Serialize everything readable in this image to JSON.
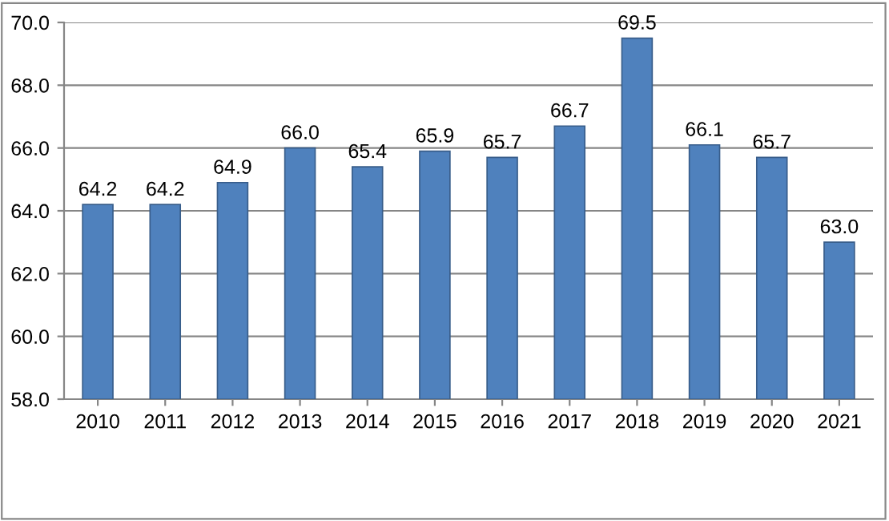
{
  "chart_data": {
    "type": "bar",
    "categories": [
      "2010",
      "2011",
      "2012",
      "2013",
      "2014",
      "2015",
      "2016",
      "2017",
      "2018",
      "2019",
      "2020",
      "2021"
    ],
    "values": [
      64.2,
      64.2,
      64.9,
      66.0,
      65.4,
      65.9,
      65.7,
      66.7,
      69.5,
      66.1,
      65.7,
      63.0
    ],
    "color": "#4f81bd",
    "ylim": [
      58,
      70
    ],
    "yticks": [
      {
        "value": 58,
        "label": "58.0"
      },
      {
        "value": 60,
        "label": "60.0"
      },
      {
        "value": 62,
        "label": "62.0"
      },
      {
        "value": 64,
        "label": "64.0"
      },
      {
        "value": 66,
        "label": "66.0"
      },
      {
        "value": 68,
        "label": "68.0"
      },
      {
        "value": 70,
        "label": "70.0"
      }
    ],
    "grid": "y",
    "value_labels": [
      "64.2",
      "64.2",
      "64.9",
      "66.0",
      "65.4",
      "65.9",
      "65.7",
      "66.7",
      "69.5",
      "66.1",
      "65.7",
      "63.0"
    ]
  }
}
